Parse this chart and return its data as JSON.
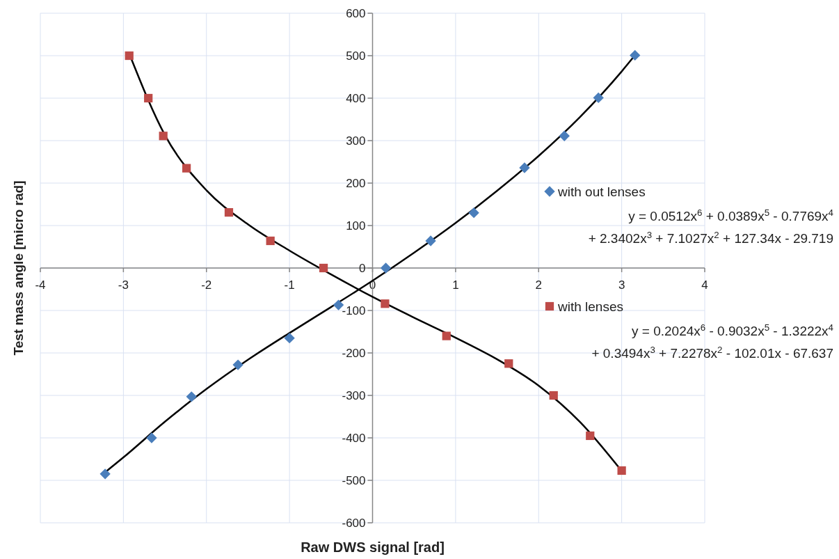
{
  "chart_data": {
    "type": "scatter",
    "xlabel": "Raw DWS signal  [rad]",
    "ylabel": "Test mass angle  [micro rad]",
    "xlim": [
      -4,
      4
    ],
    "xticks": [
      -4,
      -3,
      -2,
      -1,
      0,
      1,
      2,
      3,
      4
    ],
    "ylim": [
      -600,
      600
    ],
    "yticks": [
      -600,
      -500,
      -400,
      -300,
      -200,
      -100,
      0,
      100,
      200,
      300,
      400,
      500,
      600
    ],
    "grid": true,
    "legend": "right",
    "series": [
      {
        "type": "line",
        "color": "#000000",
        "marker": "none",
        "line_style": "solid",
        "x": [
          -3.22,
          -3,
          -2.5,
          -2,
          -1.5,
          -1,
          -0.5,
          0,
          0.5,
          1,
          1.5,
          2,
          2.5,
          3,
          3.16
        ],
        "values": [
          -481,
          -446,
          -362,
          -285,
          -216,
          -153,
          -92,
          -30,
          36,
          106,
          182,
          264,
          356,
          463,
          501
        ]
      },
      {
        "type": "line",
        "color": "#000000",
        "marker": "none",
        "line_style": "solid",
        "x": [
          -2.93,
          -2.5,
          -2,
          -1.5,
          -1,
          -0.5,
          0,
          0.5,
          1,
          1.5,
          2,
          2.5,
          3
        ],
        "values": [
          505,
          313,
          183,
          103,
          41,
          -15,
          -68,
          -117,
          -164,
          -215,
          -277,
          -363,
          -478
        ]
      },
      {
        "name": "with out lenses",
        "color": "#4a7ebb",
        "marker": "diamond",
        "x": [
          -3.22,
          -2.66,
          -2.18,
          -1.62,
          -1.0,
          -0.41,
          0.16,
          0.7,
          1.22,
          1.83,
          2.31,
          2.72,
          3.16
        ],
        "values": [
          -485,
          -400,
          -303,
          -228,
          -165,
          -87,
          0,
          64,
          130,
          236,
          311,
          401,
          501
        ]
      },
      {
        "name": "with lenses",
        "color": "#be4b48",
        "marker": "square",
        "x": [
          -2.93,
          -2.7,
          -2.52,
          -2.24,
          -1.73,
          -1.23,
          -0.59,
          0.15,
          0.89,
          1.64,
          2.18,
          2.62,
          3.0
        ],
        "values": [
          500,
          400,
          311,
          235,
          131,
          64,
          0,
          -84,
          -160,
          -225,
          -300,
          -395,
          -477
        ]
      }
    ],
    "annotations": [
      "y = 0.0512x$^{6}$ + 0.0389x$^{5}$ - 0.7769x$^{4}$",
      "+ 2.3402x$^{3}$ + 7.1027x$^{2}$ + 127.34x - 29.719",
      "y = 0.2024x$^{6}$ - 0.9032x$^{5}$ - 1.3222x$^{4}$",
      "+ 0.3494x$^{3}$ + 7.2278x$^{2}$ - 102.01x - 67.637"
    ]
  }
}
